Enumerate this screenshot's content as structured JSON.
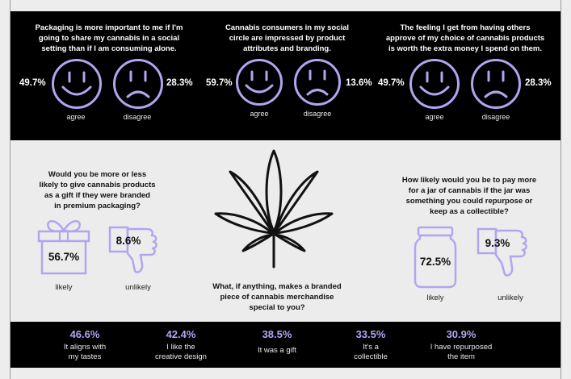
{
  "top_questions": [
    {
      "title_lines": [
        "Packaging is more important to me if I'm",
        "going to share my cannabis in a social",
        "setting than if I am consuming alone."
      ],
      "agree_pct": "49.7%",
      "disagree_pct": "28.3%",
      "agree_label": "agree",
      "disagree_label": "disagree"
    },
    {
      "title_lines": [
        "Cannabis consumers in my social",
        "circle are impressed by product",
        "attributes and branding."
      ],
      "agree_pct": "59.7%",
      "disagree_pct": "13.6%",
      "agree_label": "agree",
      "disagree_label": "disagree"
    },
    {
      "title_lines": [
        "The feeling I get from having others",
        "approve of my choice of cannabis products",
        "is worth the extra money I spend on them."
      ],
      "agree_pct": "49.7%",
      "disagree_pct": "28.3%",
      "agree_label": "agree",
      "disagree_label": "disagree"
    }
  ],
  "gift_question": {
    "title_lines": [
      "Would you be more or less",
      "likely to give cannabis products",
      "as a gift if they were branded",
      "in premium packaging?"
    ],
    "likely_pct": "56.7%",
    "unlikely_pct": "8.6%",
    "likely_label": "likely",
    "unlikely_label": "unlikely"
  },
  "jar_question": {
    "title_lines": [
      "How likely would you be to pay more",
      "for a jar of cannabis if the jar was",
      "something you could repurpose or",
      "keep as a collectible?"
    ],
    "likely_pct": "72.5%",
    "unlikely_pct": "9.3%",
    "likely_label": "likely",
    "unlikely_label": "unlikely"
  },
  "merch_question": {
    "title_lines": [
      "What, if anything, makes a branded",
      "piece of cannabis merchandise",
      "special to you?"
    ]
  },
  "merch_stats": [
    {
      "pct": "46.6%",
      "label_lines": [
        "It aligns with",
        "my tastes"
      ]
    },
    {
      "pct": "42.4%",
      "label_lines": [
        "I like the",
        "creative design"
      ]
    },
    {
      "pct": "38.5%",
      "label_lines": [
        "It was a gift"
      ]
    },
    {
      "pct": "33.5%",
      "label_lines": [
        "It's a",
        "collectible"
      ]
    },
    {
      "pct": "30.9%",
      "label_lines": [
        "I have repurposed",
        "the item"
      ]
    }
  ],
  "colors": {
    "accent": "#b3a4f0",
    "background": "#ededed",
    "band": "#000000"
  }
}
